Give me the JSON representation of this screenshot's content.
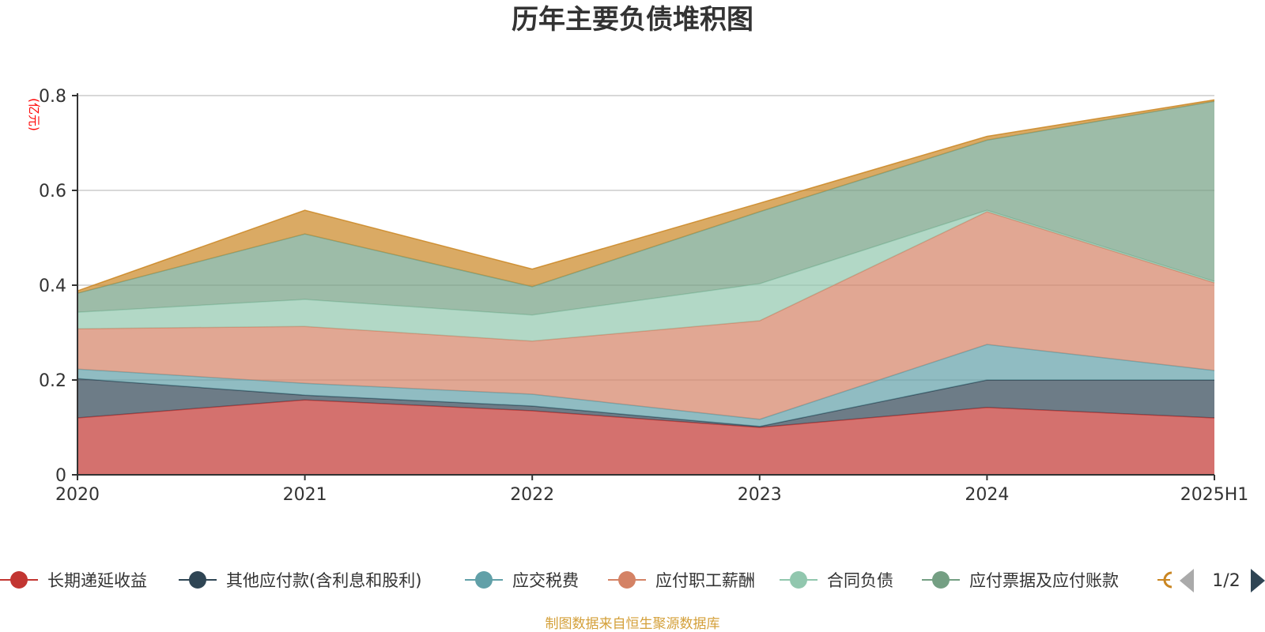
{
  "chart_data": {
    "type": "area",
    "stacked": true,
    "title": "历年主要负债堆积图",
    "unit_label": "(亿元)",
    "categories": [
      "2020",
      "2021",
      "2022",
      "2023",
      "2024",
      "2025H1"
    ],
    "ylim": [
      0,
      0.8
    ],
    "yticks": [
      "0",
      "0.2",
      "0.4",
      "0.6",
      "0.8"
    ],
    "ytick_values": [
      0,
      0.2,
      0.4,
      0.6,
      0.8
    ],
    "grid": true,
    "legend_position": "bottom",
    "series": [
      {
        "name": "长期递延收益",
        "color": "#c23531",
        "values": [
          0.12,
          0.158,
          0.135,
          0.1,
          0.142,
          0.12
        ]
      },
      {
        "name": "其他应付款(含利息和股利)",
        "color": "#2f4554",
        "values": [
          0.083,
          0.01,
          0.01,
          0.002,
          0.058,
          0.08
        ]
      },
      {
        "name": "应交税费",
        "color": "#61a0a8",
        "values": [
          0.02,
          0.025,
          0.025,
          0.015,
          0.075,
          0.02
        ]
      },
      {
        "name": "应付职工薪酬",
        "color": "#d48265",
        "values": [
          0.085,
          0.12,
          0.112,
          0.208,
          0.28,
          0.185
        ]
      },
      {
        "name": "合同负债",
        "color": "#91c7ae",
        "values": [
          0.035,
          0.057,
          0.055,
          0.078,
          0.003,
          0.003
        ]
      },
      {
        "name": "应付票据及应付账款",
        "color": "#749f83",
        "values": [
          0.04,
          0.138,
          0.06,
          0.152,
          0.148,
          0.38
        ]
      },
      {
        "name": "",
        "color": "#ca8622",
        "values": [
          0.005,
          0.05,
          0.037,
          0.018,
          0.008,
          0.003
        ]
      }
    ]
  },
  "legend": {
    "page_indicator": "1/2"
  },
  "source_text": "制图数据来自恒生聚源数据库"
}
